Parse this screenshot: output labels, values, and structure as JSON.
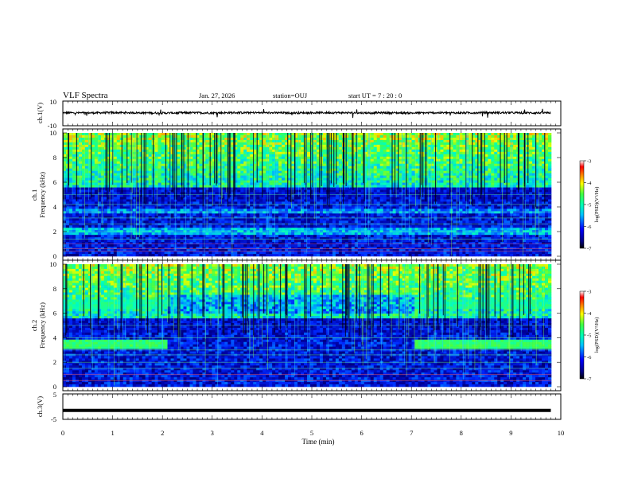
{
  "header": {
    "title": "VLF Spectra",
    "date": "Jan. 27, 2026",
    "station": "station=OUJ",
    "start": "start  UT =   7 : 20 : 0"
  },
  "chart_data": [
    {
      "type": "line",
      "panel": "ch1-waveform",
      "ylabel": "ch.1(V)",
      "ylim": [
        -10,
        10
      ],
      "yticks": [
        "10",
        "-10"
      ],
      "x": [
        0,
        0.5,
        1,
        1.5,
        2,
        2.5,
        3,
        3.5,
        4,
        4.5,
        5,
        5.5,
        6,
        6.5,
        7,
        7.5,
        8,
        8.5,
        9,
        9.5,
        9.8
      ],
      "values": [
        0.5,
        0.4,
        0.6,
        0.5,
        0.3,
        0.5,
        0.4,
        0.6,
        0.5,
        0.4,
        0.5,
        0.6,
        0.4,
        0.5,
        0.3,
        0.5,
        0.4,
        0.6,
        0.5,
        0.4,
        0.5
      ]
    },
    {
      "type": "heatmap",
      "panel": "ch1-spectrogram",
      "ylabel_top": "ch.1",
      "ylabel": "Frequency (kHz)",
      "ylim": [
        0,
        10
      ],
      "yticks": [
        "0",
        "2",
        "4",
        "6",
        "8",
        "10"
      ],
      "colorbar_label": "log(PSD)(V²/Hz)",
      "colorbar_ticks": [
        "-3",
        "-4",
        "-5",
        "-6",
        "-7"
      ],
      "colorbar_range": [
        -7,
        -3
      ]
    },
    {
      "type": "heatmap",
      "panel": "ch2-spectrogram",
      "ylabel_top": "ch.2",
      "ylabel": "Frequency (kHz)",
      "ylim": [
        0,
        10
      ],
      "yticks": [
        "0",
        "2",
        "4",
        "6",
        "8",
        "10"
      ],
      "colorbar_label": "log(PSD)(V²/Hz)",
      "colorbar_ticks": [
        "-3",
        "-4",
        "-5",
        "-6",
        "-7"
      ],
      "colorbar_range": [
        -7,
        -3
      ]
    },
    {
      "type": "line",
      "panel": "ch3-waveform",
      "ylabel": "ch.3(V)",
      "ylim": [
        -5,
        5
      ],
      "yticks": [
        "5",
        "-5"
      ],
      "x": [
        0,
        9.8
      ],
      "values": [
        -1.5,
        -1.5
      ]
    }
  ],
  "xaxis": {
    "label": "Time (min)",
    "ticks": [
      "0",
      "1",
      "2",
      "3",
      "4",
      "5",
      "6",
      "7",
      "8",
      "9",
      "10"
    ],
    "xlim": [
      0,
      10
    ]
  },
  "colors": {
    "colormap": [
      "#000080",
      "#0000ff",
      "#00bfff",
      "#00ffb0",
      "#40ff40",
      "#ffff00",
      "#ff8000",
      "#ff0000",
      "#ffffff"
    ]
  }
}
